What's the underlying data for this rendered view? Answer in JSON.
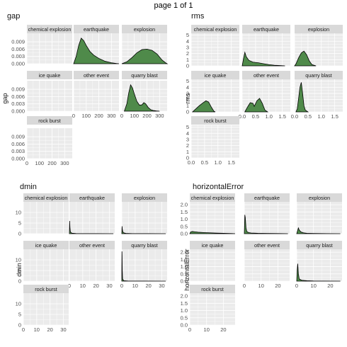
{
  "page_title": "page 1 of 1",
  "colors": {
    "fill": "#4f8a4a",
    "line": "#000000",
    "panel_bg": "#ebebeb",
    "strip_bg": "#d9d9d9",
    "grid": "#ffffff"
  },
  "chart_data": [
    {
      "type": "area",
      "title": "gap",
      "ylabel": "gap",
      "xlim": [
        0,
        360
      ],
      "ylim": [
        0,
        0.0125
      ],
      "xticks": [
        0,
        100,
        200,
        300
      ],
      "xtick_labels": [
        "0",
        "100",
        "200",
        "300"
      ],
      "yticks": [
        0,
        0.003,
        0.006,
        0.009
      ],
      "ytick_labels": [
        "0.000",
        "0.003",
        "0.006",
        "0.009"
      ],
      "facets": [
        {
          "name": "chemical explosion",
          "x": [],
          "y": []
        },
        {
          "name": "earthquake",
          "x": [
            0,
            20,
            40,
            60,
            80,
            100,
            130,
            160,
            200,
            250,
            300,
            340,
            360
          ],
          "y": [
            0,
            0.003,
            0.0075,
            0.0105,
            0.0095,
            0.0075,
            0.005,
            0.0035,
            0.0022,
            0.001,
            0.0004,
            0.0001,
            0
          ]
        },
        {
          "name": "explosion",
          "x": [
            0,
            40,
            80,
            120,
            160,
            200,
            240,
            280,
            320,
            350,
            360
          ],
          "y": [
            0,
            0.0008,
            0.0025,
            0.0045,
            0.0058,
            0.006,
            0.0055,
            0.004,
            0.0015,
            0.0003,
            0
          ]
        },
        {
          "name": "ice quake",
          "x": [],
          "y": []
        },
        {
          "name": "other event",
          "x": [],
          "y": []
        },
        {
          "name": "quarry blast",
          "x": [
            20,
            40,
            55,
            70,
            85,
            100,
            120,
            140,
            160,
            175,
            190,
            210,
            230,
            250,
            275,
            300
          ],
          "y": [
            0,
            0.003,
            0.0075,
            0.0108,
            0.0095,
            0.007,
            0.004,
            0.0025,
            0.0026,
            0.0035,
            0.003,
            0.0015,
            0.0006,
            0.0003,
            0.0001,
            0
          ]
        },
        {
          "name": "rock burst",
          "x": [],
          "y": []
        }
      ]
    },
    {
      "type": "area",
      "title": "rms",
      "ylabel": "rms",
      "xlim": [
        0,
        1.8
      ],
      "ylim": [
        0,
        5.3
      ],
      "xticks": [
        0,
        0.5,
        1.0,
        1.5
      ],
      "xtick_labels": [
        "0.0",
        "0.5",
        "1.0",
        "1.5"
      ],
      "yticks": [
        0,
        1,
        2,
        3,
        4,
        5
      ],
      "ytick_labels": [
        "0",
        "1",
        "2",
        "3",
        "4",
        "5"
      ],
      "facets": [
        {
          "name": "chemical explosion",
          "x": [],
          "y": []
        },
        {
          "name": "earthquake",
          "x": [
            0,
            0.05,
            0.1,
            0.15,
            0.25,
            0.4,
            0.6,
            0.8,
            1.0,
            1.2,
            1.4,
            1.6
          ],
          "y": [
            0,
            1.2,
            2.2,
            1.5,
            0.9,
            0.6,
            0.5,
            0.35,
            0.2,
            0.1,
            0.05,
            0
          ]
        },
        {
          "name": "explosion",
          "x": [
            0,
            0.05,
            0.15,
            0.25,
            0.35,
            0.45,
            0.55,
            0.65,
            0.8
          ],
          "y": [
            0,
            0.3,
            1.3,
            2.1,
            2.4,
            1.8,
            0.8,
            0.2,
            0
          ]
        },
        {
          "name": "ice quake",
          "x": [
            0.05,
            0.15,
            0.3,
            0.45,
            0.55,
            0.65,
            0.75,
            0.85,
            0.9
          ],
          "y": [
            0,
            0.4,
            1.0,
            1.5,
            1.8,
            1.6,
            0.8,
            0.1,
            0
          ]
        },
        {
          "name": "other event",
          "x": [
            0.1,
            0.2,
            0.3,
            0.4,
            0.45,
            0.55,
            0.65,
            0.75,
            0.85,
            0.95
          ],
          "y": [
            0,
            0.8,
            1.5,
            1.4,
            0.9,
            1.8,
            2.2,
            1.4,
            0.3,
            0
          ]
        },
        {
          "name": "quarry blast",
          "x": [
            0.05,
            0.1,
            0.15,
            0.2,
            0.25,
            0.3,
            0.35,
            0.4,
            0.5
          ],
          "y": [
            0,
            0.5,
            2.2,
            4.0,
            4.8,
            3.0,
            1.0,
            0.3,
            0
          ]
        },
        {
          "name": "rock burst",
          "x": [],
          "y": []
        }
      ]
    },
    {
      "type": "area",
      "title": "dmin",
      "ylabel": "dmin",
      "xlim": [
        0,
        34
      ],
      "ylim": [
        0,
        15
      ],
      "xticks": [
        0,
        10,
        20,
        30
      ],
      "xtick_labels": [
        "0",
        "10",
        "20",
        "30"
      ],
      "yticks": [
        0,
        5,
        10
      ],
      "ytick_labels": [
        "0",
        "5",
        "10"
      ],
      "facets": [
        {
          "name": "chemical explosion",
          "x": [],
          "y": []
        },
        {
          "name": "earthquake",
          "x": [
            0,
            0.2,
            0.4,
            0.7,
            1.2,
            2,
            5,
            10,
            20,
            33
          ],
          "y": [
            0,
            6.0,
            3.0,
            1.0,
            0.5,
            0.25,
            0.08,
            0.04,
            0.02,
            0
          ]
        },
        {
          "name": "explosion",
          "x": [
            0,
            0.2,
            0.4,
            0.8,
            1.5,
            3,
            8,
            20,
            33
          ],
          "y": [
            0,
            3.5,
            2.0,
            0.8,
            0.4,
            0.15,
            0.05,
            0.02,
            0
          ]
        },
        {
          "name": "ice quake",
          "x": [],
          "y": []
        },
        {
          "name": "other event",
          "x": [],
          "y": []
        },
        {
          "name": "quarry blast",
          "x": [
            0,
            0.1,
            0.2,
            0.35,
            0.6,
            1.5,
            5,
            15,
            33
          ],
          "y": [
            0,
            14.0,
            12.0,
            5.0,
            1.0,
            0.2,
            0.05,
            0.02,
            0
          ]
        },
        {
          "name": "rock burst",
          "x": [],
          "y": []
        }
      ]
    },
    {
      "type": "area",
      "title": "horizontalError",
      "ylabel": "horizontalError",
      "xlim": [
        0,
        27
      ],
      "ylim": [
        0,
        2.2
      ],
      "xticks": [
        0,
        10,
        20
      ],
      "xtick_labels": [
        "0",
        "10",
        "20"
      ],
      "yticks": [
        0,
        0.5,
        1.0,
        1.5,
        2.0
      ],
      "ytick_labels": [
        "0.0",
        "0.5",
        "1.0",
        "1.5",
        "2.0"
      ],
      "facets": [
        {
          "name": "chemical explosion",
          "x": [
            0,
            0.5,
            1.5,
            3,
            5,
            8,
            12,
            16,
            20,
            25,
            27
          ],
          "y": [
            0,
            0.12,
            0.15,
            0.13,
            0.1,
            0.08,
            0.06,
            0.04,
            0.03,
            0.01,
            0
          ]
        },
        {
          "name": "earthquake",
          "x": [
            0,
            0.3,
            0.6,
            1.0,
            1.5,
            2.5,
            4,
            8,
            14,
            20,
            26
          ],
          "y": [
            0,
            1.3,
            1.1,
            0.4,
            0.15,
            0.08,
            0.05,
            0.03,
            0.02,
            0.01,
            0
          ]
        },
        {
          "name": "explosion",
          "x": [
            0,
            0.5,
            1.0,
            1.5,
            2.5,
            4,
            6,
            10,
            18,
            26
          ],
          "y": [
            0,
            0.2,
            0.4,
            0.25,
            0.12,
            0.06,
            0.03,
            0.015,
            0.005,
            0
          ]
        },
        {
          "name": "ice quake",
          "x": [],
          "y": []
        },
        {
          "name": "other event",
          "x": [],
          "y": []
        },
        {
          "name": "quarry blast",
          "x": [
            0,
            0.3,
            0.6,
            1.0,
            1.5,
            3,
            6,
            10,
            15,
            26
          ],
          "y": [
            0,
            0.8,
            1.2,
            0.5,
            0.15,
            0.06,
            0.03,
            0.01,
            0.005,
            0
          ]
        },
        {
          "name": "rock burst",
          "x": [],
          "y": []
        }
      ]
    }
  ]
}
